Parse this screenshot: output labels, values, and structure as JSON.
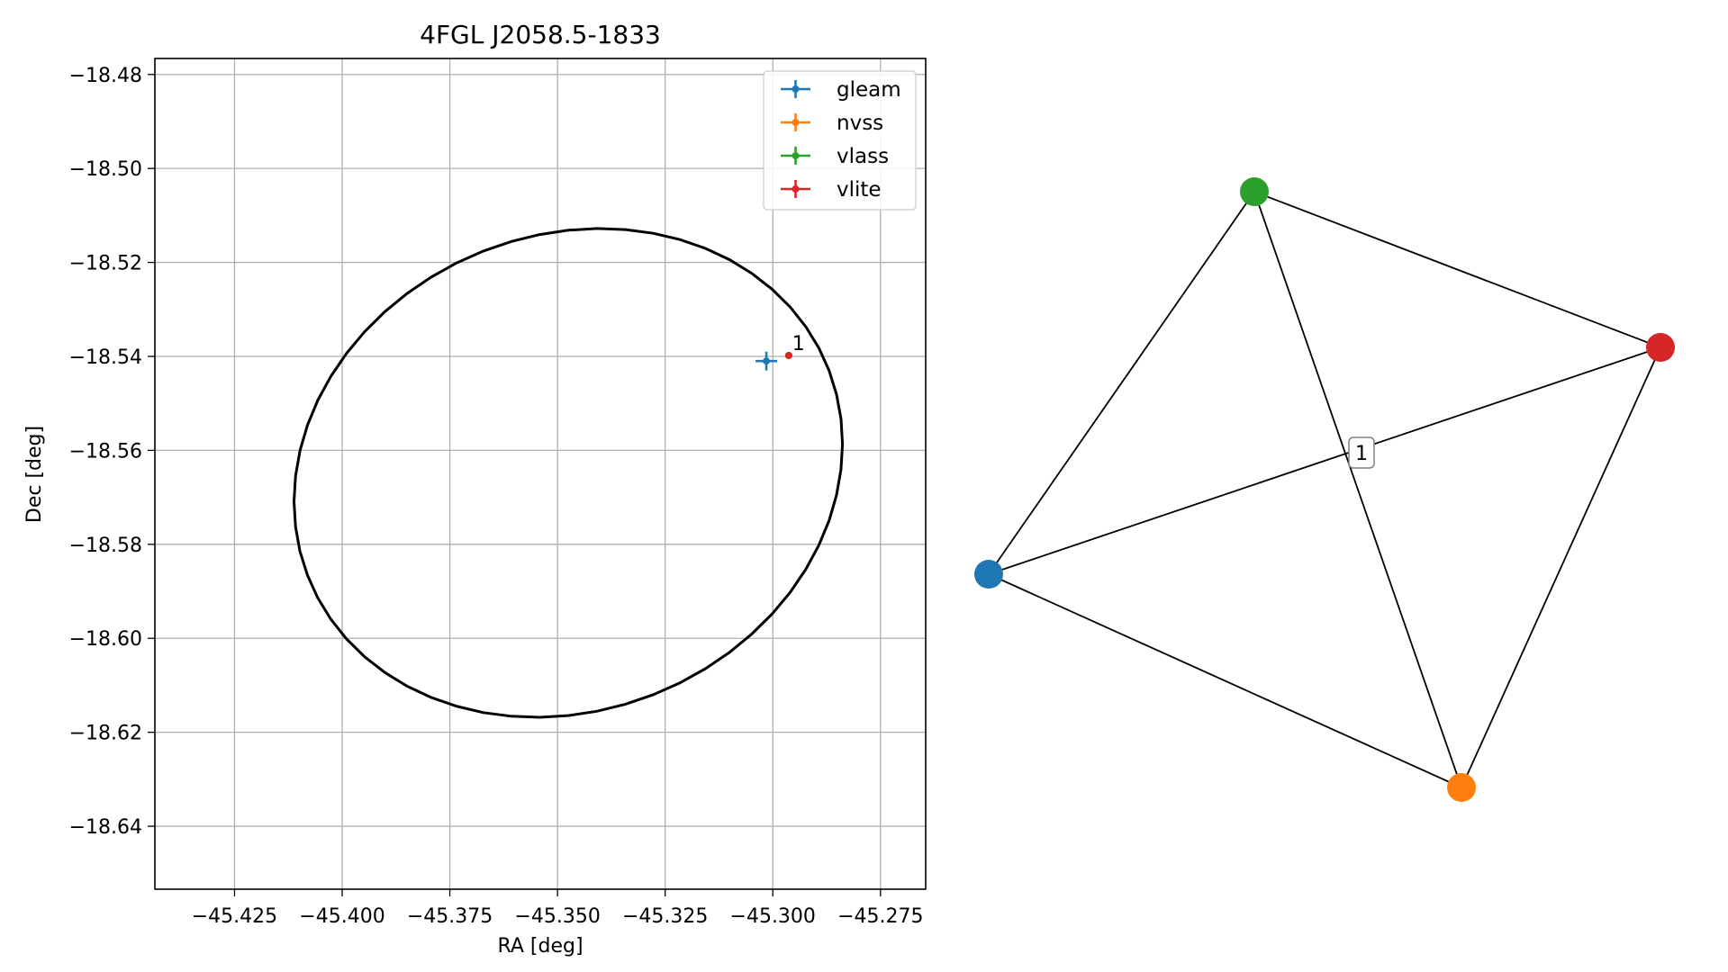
{
  "chart_data": [
    {
      "type": "scatter",
      "title": "4FGL J2058.5-1833",
      "xlabel": "RA [deg]",
      "ylabel": "Dec [deg]",
      "xlim": [
        -45.4435,
        -45.2645
      ],
      "ylim": [
        -18.6534,
        -18.4766
      ],
      "xticks": [
        -45.425,
        -45.4,
        -45.375,
        -45.35,
        -45.325,
        -45.3,
        -45.275
      ],
      "xtick_labels": [
        "−45.425",
        "−45.400",
        "−45.375",
        "−45.350",
        "−45.325",
        "−45.300",
        "−45.275"
      ],
      "yticks": [
        -18.48,
        -18.5,
        -18.52,
        -18.54,
        -18.56,
        -18.58,
        -18.6,
        -18.62,
        -18.64
      ],
      "ytick_labels": [
        "−18.48",
        "−18.50",
        "−18.52",
        "−18.54",
        "−18.56",
        "−18.58",
        "−18.60",
        "−18.62",
        "−18.64"
      ],
      "grid": true,
      "legend_position": "top-right",
      "series": [
        {
          "name": "gleam",
          "color": "#1f77b4",
          "x": -45.3015,
          "y": -18.541,
          "xerr": 0.0025,
          "yerr": 0.002
        },
        {
          "name": "nvss",
          "color": "#ff7f0e",
          "x": -45.2963,
          "y": -18.5398,
          "xerr": 0.0006,
          "yerr": 0.0006
        },
        {
          "name": "vlass",
          "color": "#2ca02c",
          "x": -45.2963,
          "y": -18.5398,
          "xerr": 0.0002,
          "yerr": 0.0002
        },
        {
          "name": "vlite",
          "color": "#d62728",
          "x": -45.2963,
          "y": -18.5398,
          "xerr": 0.0004,
          "yerr": 0.0004
        }
      ],
      "annotations": [
        {
          "text": "1",
          "x": -45.2955,
          "y": -18.5387
        }
      ],
      "ellipse": {
        "color": "#000000",
        "center": [
          -45.3475,
          -18.5648
        ],
        "ra_halfwidth": 0.0645,
        "dec_halfheight": 0.051,
        "rotation_deg": 15
      }
    },
    {
      "type": "graph",
      "nodes": [
        {
          "name": "gleam",
          "color": "#1f77b4"
        },
        {
          "name": "vlass",
          "color": "#2ca02c"
        },
        {
          "name": "vlite",
          "color": "#d62728"
        },
        {
          "name": "nvss",
          "color": "#ff7f0e"
        }
      ],
      "edges": [
        [
          "gleam",
          "vlass"
        ],
        [
          "gleam",
          "vlite"
        ],
        [
          "gleam",
          "nvss"
        ],
        [
          "vlass",
          "vlite"
        ],
        [
          "vlass",
          "nvss"
        ],
        [
          "vlite",
          "nvss"
        ]
      ],
      "edge_label": "1",
      "edge_color": "#000000"
    }
  ]
}
